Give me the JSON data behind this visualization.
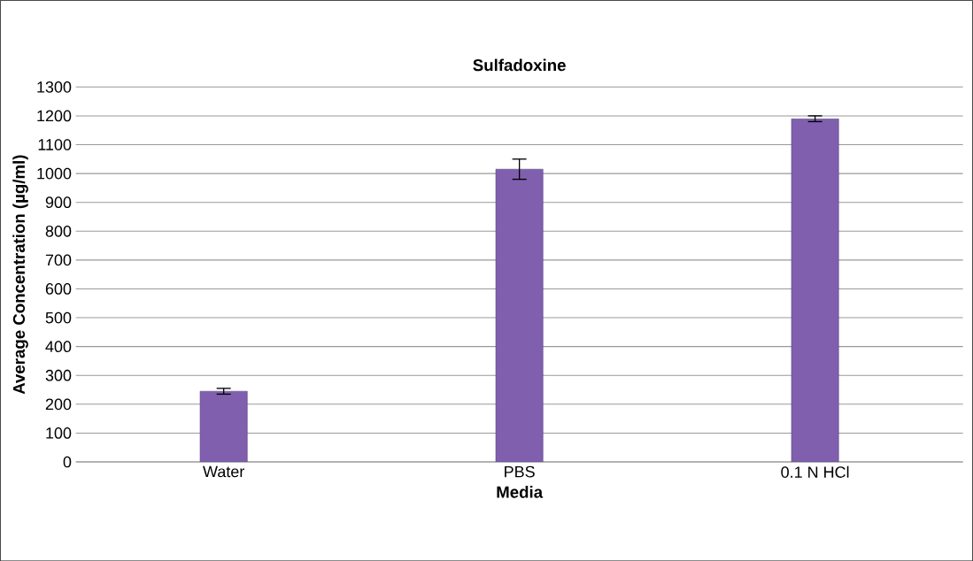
{
  "chart_data": {
    "type": "bar",
    "title": "Sulfadoxine",
    "xlabel": "Media",
    "ylabel": "Average Concentration (µg/ml)",
    "categories": [
      "Water",
      "PBS",
      "0.1 N HCl"
    ],
    "values": [
      245,
      1015,
      1190
    ],
    "errors": [
      10,
      35,
      10
    ],
    "color": "#7f5fae",
    "ylim": [
      0,
      1300
    ],
    "yticks": [
      0,
      100,
      200,
      300,
      400,
      500,
      600,
      700,
      800,
      900,
      1000,
      1100,
      1200,
      1300
    ],
    "grid": "y"
  }
}
